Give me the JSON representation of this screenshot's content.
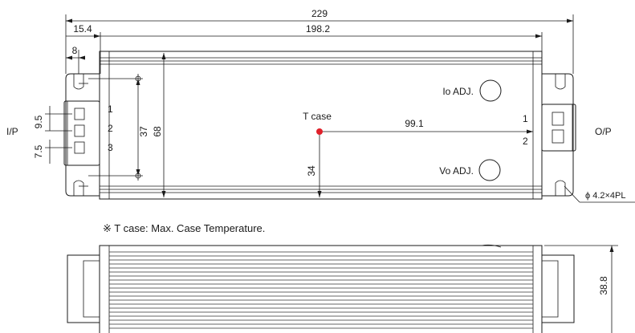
{
  "dimensions": {
    "overall_length": "229",
    "mounting_pitch": "198.2",
    "end_offset": "15.4",
    "tab_width": "8",
    "terminal_pitch_1": "9.5",
    "terminal_pitch_2": "7.5",
    "hole_spacing": "37",
    "body_width": "68",
    "tcase_from_bottom": "34",
    "tcase_from_right": "99.1",
    "height": "38.8"
  },
  "labels": {
    "input": "I/P",
    "output": "O/P",
    "io_adj": "Io ADJ.",
    "vo_adj": "Vo ADJ.",
    "tcase": "T case",
    "mounting_hole": "ϕ 4.2×4PL",
    "pin_in_1": "1",
    "pin_in_2": "2",
    "pin_in_3": "3",
    "pin_out_1": "1",
    "pin_out_2": "2"
  },
  "note": "※ T case: Max. Case Temperature.",
  "colors": {
    "tcase_dot": "#e0202a",
    "line": "#1a1a1a"
  }
}
